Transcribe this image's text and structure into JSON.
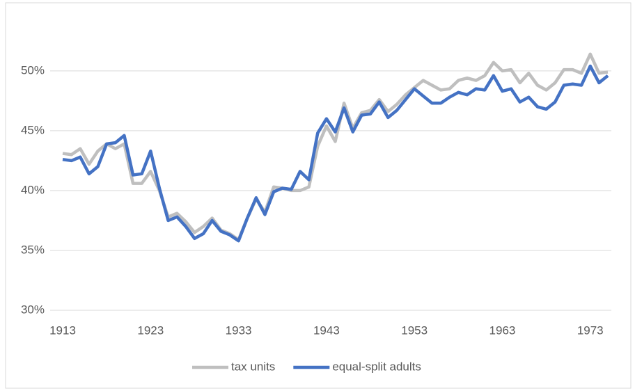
{
  "chart_data": {
    "type": "line",
    "x": [
      1913,
      1914,
      1915,
      1916,
      1917,
      1918,
      1919,
      1920,
      1921,
      1922,
      1923,
      1924,
      1925,
      1926,
      1927,
      1928,
      1929,
      1930,
      1931,
      1932,
      1933,
      1934,
      1935,
      1936,
      1937,
      1938,
      1939,
      1940,
      1941,
      1942,
      1943,
      1944,
      1945,
      1946,
      1947,
      1948,
      1949,
      1950,
      1951,
      1952,
      1953,
      1954,
      1955,
      1956,
      1957,
      1958,
      1959,
      1960,
      1961,
      1962,
      1963,
      1964,
      1965,
      1966,
      1967,
      1968,
      1969,
      1970,
      1971,
      1972,
      1973,
      1974,
      1975
    ],
    "series": [
      {
        "name": "tax units",
        "color": "#bfbfbf",
        "values": [
          43.1,
          43.0,
          43.5,
          42.2,
          43.3,
          43.9,
          43.5,
          43.9,
          40.6,
          40.6,
          41.6,
          40.0,
          37.8,
          38.1,
          37.4,
          36.5,
          37.0,
          37.7,
          36.7,
          36.4,
          35.9,
          37.7,
          39.3,
          38.2,
          40.3,
          40.2,
          40.0,
          40.0,
          40.3,
          43.7,
          45.4,
          44.1,
          47.3,
          45.2,
          46.5,
          46.7,
          47.6,
          46.6,
          47.2,
          48.0,
          48.6,
          49.2,
          48.8,
          48.4,
          48.5,
          49.2,
          49.4,
          49.2,
          49.6,
          50.7,
          50.0,
          50.1,
          49.0,
          49.8,
          48.8,
          48.4,
          49.0,
          50.1,
          50.1,
          49.8,
          51.4,
          49.8,
          49.9
        ]
      },
      {
        "name": "equal-split adults",
        "color": "#4472c4",
        "values": [
          42.6,
          42.5,
          42.8,
          41.4,
          42.0,
          43.9,
          44.0,
          44.6,
          41.3,
          41.4,
          43.3,
          40.2,
          37.5,
          37.8,
          37.0,
          36.0,
          36.4,
          37.5,
          36.6,
          36.3,
          35.8,
          37.7,
          39.4,
          38.0,
          39.9,
          40.2,
          40.1,
          41.6,
          40.9,
          44.8,
          46.0,
          44.9,
          46.9,
          44.9,
          46.3,
          46.4,
          47.4,
          46.1,
          46.7,
          47.6,
          48.5,
          47.9,
          47.3,
          47.3,
          47.8,
          48.2,
          48.0,
          48.5,
          48.4,
          49.6,
          48.3,
          48.5,
          47.4,
          47.8,
          47.0,
          46.8,
          47.4,
          48.8,
          48.9,
          48.8,
          50.4,
          49.0,
          49.6
        ]
      }
    ],
    "xlim": [
      1913,
      1975
    ],
    "xticks": [
      1913,
      1923,
      1933,
      1943,
      1953,
      1963,
      1973
    ],
    "ylim": [
      30,
      54
    ],
    "yticks": [
      {
        "value": 30,
        "label": "30%"
      },
      {
        "value": 35,
        "label": "35%"
      },
      {
        "value": 40,
        "label": "40%"
      },
      {
        "value": 45,
        "label": "45%"
      },
      {
        "value": 50,
        "label": "50%"
      }
    ],
    "grid": true,
    "legend": "bottom"
  }
}
